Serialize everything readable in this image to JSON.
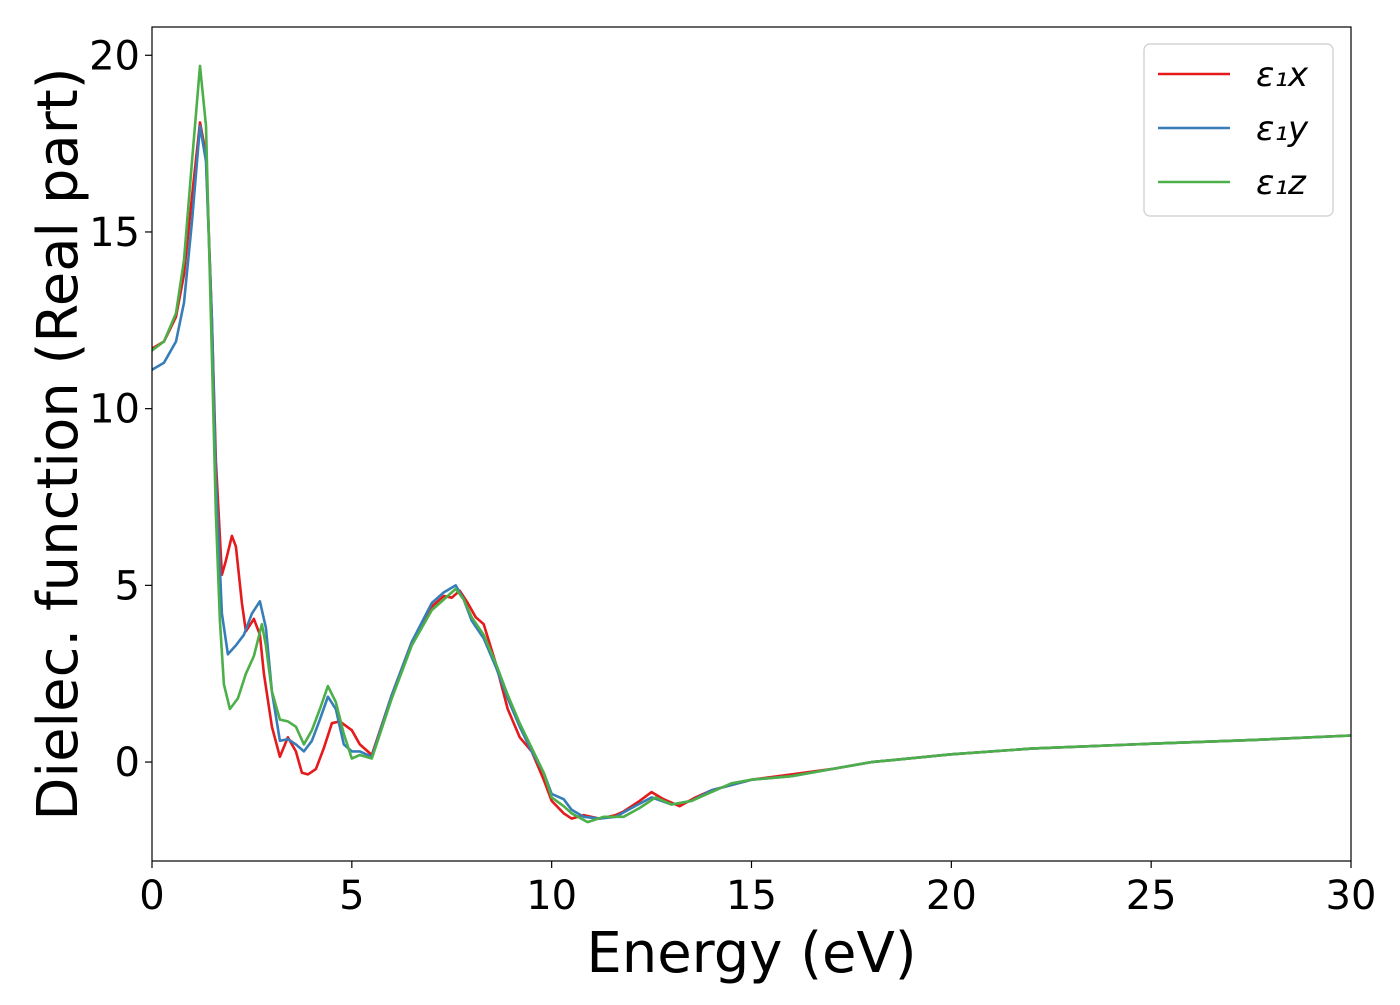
{
  "chart_data": {
    "type": "line",
    "title": "",
    "xlabel": "Energy (eV)",
    "ylabel": "Dielec. function (Real part)",
    "xlim": [
      0,
      30
    ],
    "ylim": [
      -2.8,
      20.8
    ],
    "grid": false,
    "legend_position": "top-right",
    "x_ticks": [
      0,
      5,
      10,
      15,
      20,
      25,
      30
    ],
    "y_ticks": [
      0,
      5,
      10,
      15,
      20
    ],
    "x_tick_labels": [
      "0",
      "5",
      "10",
      "15",
      "20",
      "25",
      "30"
    ],
    "y_tick_labels": [
      "0",
      "5",
      "10",
      "15",
      "20"
    ],
    "series": [
      {
        "name": "ε₁x",
        "color": "#e41a1c",
        "points": [
          [
            0,
            11.7
          ],
          [
            0.3,
            11.9
          ],
          [
            0.6,
            12.6
          ],
          [
            0.8,
            13.8
          ],
          [
            1.0,
            16.0
          ],
          [
            1.2,
            18.1
          ],
          [
            1.35,
            17.2
          ],
          [
            1.5,
            12.5
          ],
          [
            1.6,
            8.5
          ],
          [
            1.75,
            5.3
          ],
          [
            1.85,
            5.7
          ],
          [
            2.0,
            6.4
          ],
          [
            2.1,
            6.1
          ],
          [
            2.25,
            4.5
          ],
          [
            2.35,
            3.7
          ],
          [
            2.55,
            4.05
          ],
          [
            2.7,
            3.6
          ],
          [
            2.8,
            2.5
          ],
          [
            3.0,
            1.0
          ],
          [
            3.2,
            0.15
          ],
          [
            3.4,
            0.7
          ],
          [
            3.6,
            0.3
          ],
          [
            3.75,
            -0.3
          ],
          [
            3.9,
            -0.35
          ],
          [
            4.1,
            -0.2
          ],
          [
            4.3,
            0.4
          ],
          [
            4.5,
            1.1
          ],
          [
            4.7,
            1.15
          ],
          [
            5.0,
            0.9
          ],
          [
            5.2,
            0.5
          ],
          [
            5.5,
            0.2
          ],
          [
            6.0,
            1.9
          ],
          [
            6.5,
            3.4
          ],
          [
            7.0,
            4.4
          ],
          [
            7.3,
            4.7
          ],
          [
            7.5,
            4.65
          ],
          [
            7.7,
            4.85
          ],
          [
            7.9,
            4.5
          ],
          [
            8.1,
            4.1
          ],
          [
            8.3,
            3.9
          ],
          [
            8.6,
            2.8
          ],
          [
            8.9,
            1.5
          ],
          [
            9.2,
            0.7
          ],
          [
            9.5,
            0.3
          ],
          [
            9.8,
            -0.5
          ],
          [
            10.0,
            -1.1
          ],
          [
            10.3,
            -1.45
          ],
          [
            10.5,
            -1.6
          ],
          [
            10.8,
            -1.5
          ],
          [
            11.2,
            -1.6
          ],
          [
            11.6,
            -1.5
          ],
          [
            11.8,
            -1.4
          ],
          [
            12.2,
            -1.1
          ],
          [
            12.5,
            -0.85
          ],
          [
            12.8,
            -1.05
          ],
          [
            13.2,
            -1.25
          ],
          [
            13.6,
            -1.0
          ],
          [
            14.0,
            -0.8
          ],
          [
            14.5,
            -0.65
          ],
          [
            15.0,
            -0.5
          ],
          [
            16.0,
            -0.35
          ],
          [
            17.0,
            -0.2
          ],
          [
            18.0,
            0.0
          ],
          [
            20.0,
            0.22
          ],
          [
            22.0,
            0.38
          ],
          [
            25.0,
            0.52
          ],
          [
            27.5,
            0.62
          ],
          [
            30.0,
            0.75
          ]
        ]
      },
      {
        "name": "ε₁y",
        "color": "#377eb8",
        "points": [
          [
            0,
            11.1
          ],
          [
            0.3,
            11.3
          ],
          [
            0.6,
            11.9
          ],
          [
            0.8,
            13.0
          ],
          [
            1.0,
            15.3
          ],
          [
            1.2,
            18.0
          ],
          [
            1.35,
            17.0
          ],
          [
            1.5,
            12.5
          ],
          [
            1.6,
            8.0
          ],
          [
            1.75,
            4.2
          ],
          [
            1.9,
            3.05
          ],
          [
            2.1,
            3.3
          ],
          [
            2.3,
            3.6
          ],
          [
            2.5,
            4.2
          ],
          [
            2.7,
            4.55
          ],
          [
            2.85,
            3.8
          ],
          [
            3.0,
            2.0
          ],
          [
            3.2,
            0.6
          ],
          [
            3.4,
            0.65
          ],
          [
            3.6,
            0.5
          ],
          [
            3.8,
            0.3
          ],
          [
            4.0,
            0.6
          ],
          [
            4.2,
            1.2
          ],
          [
            4.4,
            1.85
          ],
          [
            4.6,
            1.5
          ],
          [
            4.8,
            0.5
          ],
          [
            5.0,
            0.3
          ],
          [
            5.2,
            0.3
          ],
          [
            5.5,
            0.15
          ],
          [
            6.0,
            1.9
          ],
          [
            6.5,
            3.4
          ],
          [
            7.0,
            4.5
          ],
          [
            7.3,
            4.8
          ],
          [
            7.6,
            5.0
          ],
          [
            7.8,
            4.6
          ],
          [
            8.0,
            4.0
          ],
          [
            8.3,
            3.5
          ],
          [
            8.6,
            2.7
          ],
          [
            8.9,
            1.8
          ],
          [
            9.2,
            1.0
          ],
          [
            9.5,
            0.3
          ],
          [
            9.8,
            -0.3
          ],
          [
            10.0,
            -0.9
          ],
          [
            10.3,
            -1.05
          ],
          [
            10.5,
            -1.35
          ],
          [
            10.8,
            -1.55
          ],
          [
            11.2,
            -1.6
          ],
          [
            11.6,
            -1.55
          ],
          [
            12.0,
            -1.3
          ],
          [
            12.5,
            -1.0
          ],
          [
            13.0,
            -1.2
          ],
          [
            13.5,
            -1.1
          ],
          [
            14.0,
            -0.8
          ],
          [
            14.5,
            -0.65
          ],
          [
            15.0,
            -0.5
          ],
          [
            16.0,
            -0.4
          ],
          [
            17.0,
            -0.2
          ],
          [
            18.0,
            0.0
          ],
          [
            20.0,
            0.22
          ],
          [
            22.0,
            0.38
          ],
          [
            25.0,
            0.52
          ],
          [
            27.5,
            0.62
          ],
          [
            30.0,
            0.75
          ]
        ]
      },
      {
        "name": "ε₁z",
        "color": "#4daf4a",
        "points": [
          [
            0,
            11.65
          ],
          [
            0.3,
            11.9
          ],
          [
            0.6,
            12.7
          ],
          [
            0.8,
            14.2
          ],
          [
            1.0,
            17.0
          ],
          [
            1.2,
            19.7
          ],
          [
            1.35,
            18.0
          ],
          [
            1.5,
            11.5
          ],
          [
            1.6,
            7.0
          ],
          [
            1.7,
            4.0
          ],
          [
            1.8,
            2.2
          ],
          [
            1.95,
            1.5
          ],
          [
            2.15,
            1.8
          ],
          [
            2.35,
            2.5
          ],
          [
            2.55,
            3.0
          ],
          [
            2.75,
            3.9
          ],
          [
            2.85,
            3.3
          ],
          [
            3.0,
            2.0
          ],
          [
            3.2,
            1.2
          ],
          [
            3.4,
            1.15
          ],
          [
            3.6,
            1.0
          ],
          [
            3.8,
            0.5
          ],
          [
            4.0,
            0.9
          ],
          [
            4.2,
            1.5
          ],
          [
            4.4,
            2.15
          ],
          [
            4.6,
            1.7
          ],
          [
            4.8,
            0.8
          ],
          [
            5.0,
            0.1
          ],
          [
            5.2,
            0.2
          ],
          [
            5.5,
            0.1
          ],
          [
            6.0,
            1.8
          ],
          [
            6.5,
            3.3
          ],
          [
            7.0,
            4.3
          ],
          [
            7.3,
            4.6
          ],
          [
            7.6,
            4.9
          ],
          [
            7.8,
            4.6
          ],
          [
            8.0,
            4.1
          ],
          [
            8.3,
            3.6
          ],
          [
            8.6,
            2.8
          ],
          [
            8.9,
            1.9
          ],
          [
            9.2,
            1.1
          ],
          [
            9.5,
            0.4
          ],
          [
            9.8,
            -0.3
          ],
          [
            10.0,
            -1.0
          ],
          [
            10.3,
            -1.25
          ],
          [
            10.5,
            -1.45
          ],
          [
            10.9,
            -1.7
          ],
          [
            11.3,
            -1.55
          ],
          [
            11.8,
            -1.55
          ],
          [
            12.2,
            -1.3
          ],
          [
            12.6,
            -1.0
          ],
          [
            13.0,
            -1.2
          ],
          [
            13.5,
            -1.1
          ],
          [
            14.0,
            -0.85
          ],
          [
            14.5,
            -0.6
          ],
          [
            15.0,
            -0.5
          ],
          [
            16.0,
            -0.4
          ],
          [
            17.0,
            -0.2
          ],
          [
            18.0,
            0.0
          ],
          [
            20.0,
            0.22
          ],
          [
            22.0,
            0.38
          ],
          [
            25.0,
            0.52
          ],
          [
            27.5,
            0.62
          ],
          [
            30.0,
            0.75
          ]
        ]
      }
    ]
  }
}
